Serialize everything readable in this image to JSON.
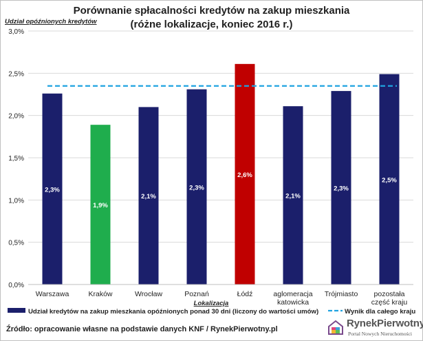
{
  "title_line1": "Porównanie spłacalności kredytów na zakup mieszkania",
  "title_line2": "(różne lokalizacje, koniec 2016 r.)",
  "source": "Źródło: opracowanie własne na podstawie danych KNF / RynekPierwotny.pl",
  "logo": {
    "name": "RynekPierwotny",
    "tagline": "Portal Nowych Nieruchomości"
  },
  "chart_data": {
    "type": "bar",
    "ylabel": "Udział opóźnionych kredytów",
    "xlabel": "Lokalizacja",
    "ylim": [
      0,
      3.0
    ],
    "yticks": [
      "0,0%",
      "0,5%",
      "1,0%",
      "1,5%",
      "2,0%",
      "2,5%",
      "3,0%"
    ],
    "categories": [
      [
        "Warszawa"
      ],
      [
        "Kraków"
      ],
      [
        "Wrocław"
      ],
      [
        "Poznań"
      ],
      [
        "Łódź"
      ],
      [
        "aglomeracja",
        "katowicka"
      ],
      [
        "Trójmiasto"
      ],
      [
        "pozostała",
        "część kraju"
      ]
    ],
    "series": [
      {
        "name": "Udział kredytów na zakup mieszkania opóźnionych ponad 30 dni (liczony do wartości umów)",
        "values": [
          2.26,
          1.89,
          2.1,
          2.31,
          2.61,
          2.11,
          2.29,
          2.49
        ],
        "labels": [
          "2,3%",
          "1,9%",
          "2,1%",
          "2,3%",
          "2,6%",
          "2,1%",
          "2,3%",
          "2,5%"
        ],
        "colors": [
          "#1b1f6b",
          "#1fad4d",
          "#1b1f6b",
          "#1b1f6b",
          "#c00000",
          "#1b1f6b",
          "#1b1f6b",
          "#1b1f6b"
        ]
      }
    ],
    "reference_line": {
      "name": "Wynik dla całego kraju",
      "value": 2.35,
      "color": "#1fa3e0"
    },
    "grid": true,
    "legend": "bottom"
  }
}
